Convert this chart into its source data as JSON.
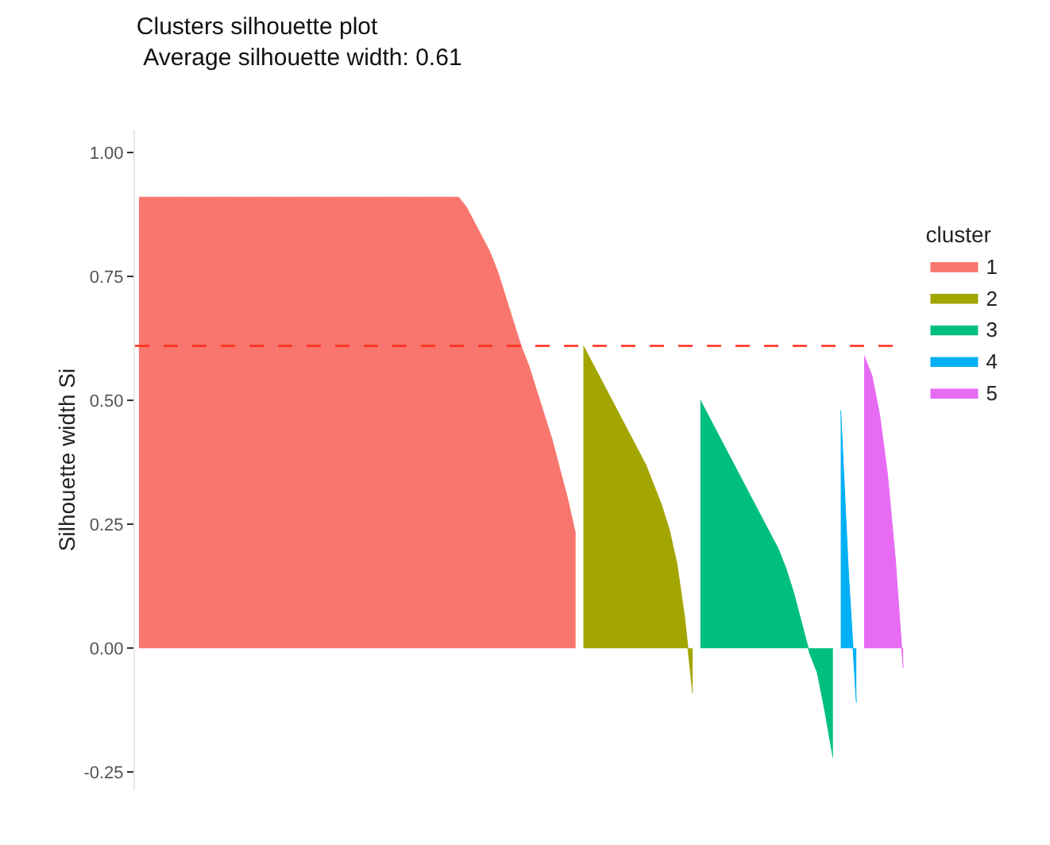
{
  "chart_data": {
    "type": "area",
    "title": "Clusters silhouette plot",
    "subtitle": " Average silhouette width: 0.61",
    "ylabel": "Silhouette width Si",
    "legend_title": "cluster",
    "categories": [
      null,
      null,
      null,
      null,
      null,
      null,
      null,
      null,
      null,
      null,
      null,
      null,
      null,
      null,
      null,
      null,
      null,
      null,
      null,
      null,
      null,
      null,
      null,
      null,
      null,
      null,
      null,
      null,
      null,
      null,
      null,
      null,
      null,
      null,
      null,
      null,
      null,
      null,
      null,
      null,
      null,
      null,
      null,
      null,
      null,
      null,
      null,
      null,
      null,
      null,
      null,
      null,
      null,
      null,
      null,
      null,
      null,
      null,
      null,
      null,
      null,
      null,
      null,
      null,
      null,
      null,
      null,
      null,
      null,
      null,
      null,
      null,
      null,
      null,
      null,
      null,
      null,
      null,
      null,
      null,
      null,
      null,
      null,
      null,
      null,
      null,
      null,
      null,
      null,
      null,
      null,
      null,
      null,
      null,
      null,
      null,
      null,
      null,
      null
    ],
    "series": [
      {
        "name": "1",
        "color": "#f8766d",
        "values": [
          0.91,
          0.91,
          0.91,
          0.91,
          0.91,
          0.91,
          0.91,
          0.91,
          0.91,
          0.91,
          0.91,
          0.91,
          0.91,
          0.91,
          0.91,
          0.91,
          0.91,
          0.91,
          0.91,
          0.91,
          0.91,
          0.91,
          0.91,
          0.91,
          0.91,
          0.91,
          0.91,
          0.91,
          0.91,
          0.91,
          0.91,
          0.91,
          0.91,
          0.91,
          0.91,
          0.91,
          0.91,
          0.91,
          0.91,
          0.91,
          0.91,
          0.91,
          0.89,
          0.86,
          0.83,
          0.8,
          0.76,
          0.71,
          0.66,
          0.61,
          0.57,
          0.52,
          0.47,
          0.42,
          0.36,
          0.3,
          0.23,
          null,
          null,
          null,
          null,
          null,
          null,
          null,
          null,
          null,
          null,
          null,
          null,
          null,
          null,
          null,
          null,
          null,
          null,
          null,
          null,
          null,
          null,
          null,
          null,
          null,
          null,
          null,
          null,
          null,
          null,
          null,
          null,
          null,
          null,
          null,
          null,
          null,
          null,
          null,
          null,
          null,
          null
        ]
      },
      {
        "name": "2",
        "color": "#a3a500",
        "values": [
          null,
          null,
          null,
          null,
          null,
          null,
          null,
          null,
          null,
          null,
          null,
          null,
          null,
          null,
          null,
          null,
          null,
          null,
          null,
          null,
          null,
          null,
          null,
          null,
          null,
          null,
          null,
          null,
          null,
          null,
          null,
          null,
          null,
          null,
          null,
          null,
          null,
          null,
          null,
          null,
          null,
          null,
          null,
          null,
          null,
          null,
          null,
          null,
          null,
          null,
          null,
          null,
          null,
          null,
          null,
          null,
          null,
          0.61,
          0.58,
          0.55,
          0.52,
          0.49,
          0.46,
          0.43,
          0.4,
          0.37,
          0.33,
          0.29,
          0.24,
          0.17,
          0.06,
          -0.09,
          null,
          null,
          null,
          null,
          null,
          null,
          null,
          null,
          null,
          null,
          null,
          null,
          null,
          null,
          null,
          null,
          null,
          null,
          null,
          null,
          null,
          null,
          null,
          null,
          null,
          null,
          null
        ]
      },
      {
        "name": "3",
        "color": "#00bf7d",
        "values": [
          null,
          null,
          null,
          null,
          null,
          null,
          null,
          null,
          null,
          null,
          null,
          null,
          null,
          null,
          null,
          null,
          null,
          null,
          null,
          null,
          null,
          null,
          null,
          null,
          null,
          null,
          null,
          null,
          null,
          null,
          null,
          null,
          null,
          null,
          null,
          null,
          null,
          null,
          null,
          null,
          null,
          null,
          null,
          null,
          null,
          null,
          null,
          null,
          null,
          null,
          null,
          null,
          null,
          null,
          null,
          null,
          null,
          null,
          null,
          null,
          null,
          null,
          null,
          null,
          null,
          null,
          null,
          null,
          null,
          null,
          null,
          null,
          0.5,
          0.47,
          0.44,
          0.41,
          0.38,
          0.35,
          0.32,
          0.29,
          0.26,
          0.23,
          0.2,
          0.16,
          0.11,
          0.05,
          -0.01,
          -0.05,
          -0.13,
          -0.22,
          null,
          null,
          null,
          null,
          null,
          null,
          null,
          null,
          null
        ]
      },
      {
        "name": "4",
        "color": "#00b0f6",
        "values": [
          null,
          null,
          null,
          null,
          null,
          null,
          null,
          null,
          null,
          null,
          null,
          null,
          null,
          null,
          null,
          null,
          null,
          null,
          null,
          null,
          null,
          null,
          null,
          null,
          null,
          null,
          null,
          null,
          null,
          null,
          null,
          null,
          null,
          null,
          null,
          null,
          null,
          null,
          null,
          null,
          null,
          null,
          null,
          null,
          null,
          null,
          null,
          null,
          null,
          null,
          null,
          null,
          null,
          null,
          null,
          null,
          null,
          null,
          null,
          null,
          null,
          null,
          null,
          null,
          null,
          null,
          null,
          null,
          null,
          null,
          null,
          null,
          null,
          null,
          null,
          null,
          null,
          null,
          null,
          null,
          null,
          null,
          null,
          null,
          null,
          null,
          null,
          null,
          null,
          null,
          0.48,
          0.15,
          -0.11,
          null,
          null,
          null,
          null,
          null,
          null
        ]
      },
      {
        "name": "5",
        "color": "#e76bf3",
        "values": [
          null,
          null,
          null,
          null,
          null,
          null,
          null,
          null,
          null,
          null,
          null,
          null,
          null,
          null,
          null,
          null,
          null,
          null,
          null,
          null,
          null,
          null,
          null,
          null,
          null,
          null,
          null,
          null,
          null,
          null,
          null,
          null,
          null,
          null,
          null,
          null,
          null,
          null,
          null,
          null,
          null,
          null,
          null,
          null,
          null,
          null,
          null,
          null,
          null,
          null,
          null,
          null,
          null,
          null,
          null,
          null,
          null,
          null,
          null,
          null,
          null,
          null,
          null,
          null,
          null,
          null,
          null,
          null,
          null,
          null,
          null,
          null,
          null,
          null,
          null,
          null,
          null,
          null,
          null,
          null,
          null,
          null,
          null,
          null,
          null,
          null,
          null,
          null,
          null,
          null,
          null,
          null,
          null,
          0.59,
          0.55,
          0.47,
          0.35,
          0.18,
          -0.04
        ]
      }
    ],
    "ylim": [
      -0.285,
      1.045
    ],
    "yticks": [
      {
        "value": -0.25,
        "label": "-0.25"
      },
      {
        "value": 0,
        "label": "0.00"
      },
      {
        "value": 0.25,
        "label": "0.25"
      },
      {
        "value": 0.5,
        "label": "0.50"
      },
      {
        "value": 0.75,
        "label": "0.75"
      },
      {
        "value": 1,
        "label": "1.00"
      }
    ],
    "ref_lines": [
      {
        "axis": "y",
        "value": 0.61,
        "color": "#ff2a1a",
        "line_style": "dashed"
      }
    ],
    "grid": false,
    "legend": "right",
    "tick_labels": "y"
  }
}
